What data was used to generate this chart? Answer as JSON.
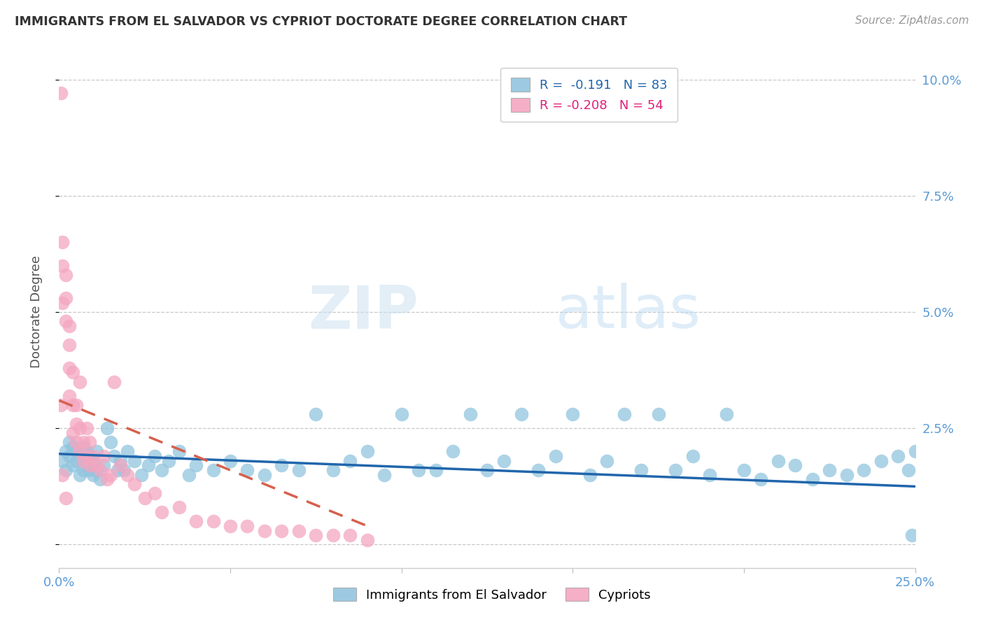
{
  "title": "IMMIGRANTS FROM EL SALVADOR VS CYPRIOT DOCTORATE DEGREE CORRELATION CHART",
  "source": "Source: ZipAtlas.com",
  "ylabel": "Doctorate Degree",
  "xlim": [
    0.0,
    0.25
  ],
  "ylim": [
    -0.005,
    0.105
  ],
  "xticks": [
    0.0,
    0.05,
    0.1,
    0.15,
    0.2,
    0.25
  ],
  "xticklabels": [
    "0.0%",
    "",
    "",
    "",
    "",
    "25.0%"
  ],
  "yticks": [
    0.0,
    0.025,
    0.05,
    0.075,
    0.1
  ],
  "yticklabels": [
    "",
    "2.5%",
    "5.0%",
    "7.5%",
    "10.0%"
  ],
  "blue_color": "#92c5de",
  "pink_color": "#f4a6c0",
  "blue_line_color": "#2166ac",
  "pink_line_color": "#d6604d",
  "legend_blue_label": "Immigrants from El Salvador",
  "legend_pink_label": "Cypriots",
  "legend_r_blue": "R =  -0.191",
  "legend_n_blue": "N = 83",
  "legend_r_pink": "R = -0.208",
  "legend_n_pink": "N = 54",
  "watermark_zip": "ZIP",
  "watermark_atlas": "atlas",
  "blue_scatter_x": [
    0.001,
    0.002,
    0.002,
    0.003,
    0.003,
    0.004,
    0.004,
    0.005,
    0.005,
    0.006,
    0.006,
    0.007,
    0.007,
    0.008,
    0.008,
    0.009,
    0.009,
    0.01,
    0.01,
    0.011,
    0.011,
    0.012,
    0.013,
    0.014,
    0.015,
    0.016,
    0.017,
    0.018,
    0.019,
    0.02,
    0.022,
    0.024,
    0.026,
    0.028,
    0.03,
    0.032,
    0.035,
    0.038,
    0.04,
    0.045,
    0.05,
    0.055,
    0.06,
    0.065,
    0.07,
    0.075,
    0.08,
    0.085,
    0.09,
    0.095,
    0.1,
    0.105,
    0.11,
    0.115,
    0.12,
    0.125,
    0.13,
    0.135,
    0.14,
    0.145,
    0.15,
    0.155,
    0.16,
    0.165,
    0.17,
    0.175,
    0.18,
    0.185,
    0.19,
    0.195,
    0.2,
    0.205,
    0.21,
    0.215,
    0.22,
    0.225,
    0.23,
    0.235,
    0.24,
    0.245,
    0.248,
    0.249,
    0.25
  ],
  "blue_scatter_y": [
    0.018,
    0.02,
    0.016,
    0.019,
    0.022,
    0.017,
    0.021,
    0.018,
    0.02,
    0.015,
    0.019,
    0.016,
    0.021,
    0.017,
    0.02,
    0.016,
    0.019,
    0.015,
    0.018,
    0.016,
    0.02,
    0.014,
    0.017,
    0.025,
    0.022,
    0.019,
    0.016,
    0.018,
    0.016,
    0.02,
    0.018,
    0.015,
    0.017,
    0.019,
    0.016,
    0.018,
    0.02,
    0.015,
    0.017,
    0.016,
    0.018,
    0.016,
    0.015,
    0.017,
    0.016,
    0.028,
    0.016,
    0.018,
    0.02,
    0.015,
    0.028,
    0.016,
    0.016,
    0.02,
    0.028,
    0.016,
    0.018,
    0.028,
    0.016,
    0.019,
    0.028,
    0.015,
    0.018,
    0.028,
    0.016,
    0.028,
    0.016,
    0.019,
    0.015,
    0.028,
    0.016,
    0.014,
    0.018,
    0.017,
    0.014,
    0.016,
    0.015,
    0.016,
    0.018,
    0.019,
    0.016,
    0.002,
    0.02
  ],
  "pink_scatter_x": [
    0.0005,
    0.0005,
    0.001,
    0.001,
    0.001,
    0.001,
    0.002,
    0.002,
    0.002,
    0.002,
    0.003,
    0.003,
    0.003,
    0.003,
    0.004,
    0.004,
    0.004,
    0.005,
    0.005,
    0.005,
    0.006,
    0.006,
    0.006,
    0.007,
    0.007,
    0.008,
    0.008,
    0.009,
    0.009,
    0.01,
    0.011,
    0.012,
    0.013,
    0.014,
    0.015,
    0.016,
    0.018,
    0.02,
    0.022,
    0.025,
    0.028,
    0.03,
    0.035,
    0.04,
    0.045,
    0.05,
    0.055,
    0.06,
    0.065,
    0.07,
    0.075,
    0.08,
    0.085,
    0.09
  ],
  "pink_scatter_y": [
    0.097,
    0.03,
    0.065,
    0.06,
    0.052,
    0.015,
    0.058,
    0.053,
    0.048,
    0.01,
    0.047,
    0.043,
    0.038,
    0.032,
    0.037,
    0.03,
    0.024,
    0.03,
    0.022,
    0.026,
    0.025,
    0.02,
    0.035,
    0.022,
    0.018,
    0.025,
    0.019,
    0.022,
    0.017,
    0.019,
    0.017,
    0.016,
    0.019,
    0.014,
    0.015,
    0.035,
    0.017,
    0.015,
    0.013,
    0.01,
    0.011,
    0.007,
    0.008,
    0.005,
    0.005,
    0.004,
    0.004,
    0.003,
    0.003,
    0.003,
    0.002,
    0.002,
    0.002,
    0.001
  ],
  "blue_trend_x": [
    0.0,
    0.25
  ],
  "blue_trend_y": [
    0.0195,
    0.0125
  ],
  "pink_trend_x": [
    0.0,
    0.09
  ],
  "pink_trend_y": [
    0.031,
    0.004
  ],
  "figsize": [
    14.06,
    8.92
  ],
  "dpi": 100
}
